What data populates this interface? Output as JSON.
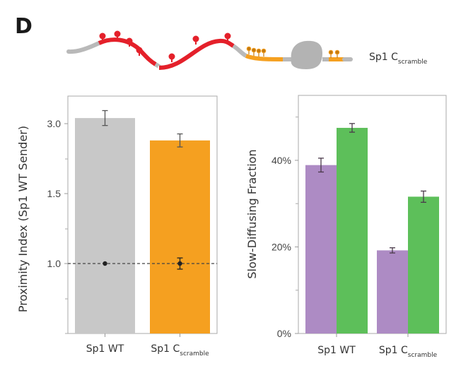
{
  "panel_label": "D",
  "schematic": {
    "label_main": "Sp1 C",
    "label_sub": "scramble",
    "colors": {
      "linker": "#b9b9b9",
      "red_domain": "#e4202a",
      "orange_domain": "#f5a020",
      "dbd": "#b3b3b3",
      "orange_dot": "#c47a10"
    }
  },
  "chart_data": [
    {
      "type": "bar",
      "title": "",
      "xlabel": "",
      "ylabel": "Proximity Index (Sp1 WT Sender)",
      "categories": [
        {
          "main": "Sp1 WT",
          "sub": ""
        },
        {
          "main": "Sp1 C",
          "sub": "scramble"
        }
      ],
      "yticks": [
        {
          "value": 1.0,
          "label": "1.0"
        },
        {
          "value": 1.5,
          "label": "1.5"
        },
        {
          "value": 3.0,
          "label": "3.0"
        }
      ],
      "yscale": "custom-evenly-spaced-ticks",
      "series": [
        {
          "name": "Proximity Index",
          "values": [
            3.12,
            2.64
          ],
          "errors": [
            0.16,
            0.14
          ],
          "colors": [
            "#c8c8c8",
            "#f5a020"
          ]
        },
        {
          "name": "Control (baseline)",
          "values": [
            1.0,
            1.0
          ],
          "errors": [
            0.0,
            0.04
          ],
          "marker": "dot",
          "color": "#222222"
        }
      ],
      "reference_line": {
        "value": 1.0,
        "style": "dashed"
      },
      "grid": false,
      "legend": "none"
    },
    {
      "type": "bar",
      "title": "",
      "xlabel": "",
      "ylabel": "Slow-Diffusing Fraction",
      "categories": [
        {
          "main": "Sp1 WT",
          "sub": ""
        },
        {
          "main": "Sp1 C",
          "sub": "scramble"
        }
      ],
      "ylim": [
        0,
        55
      ],
      "yticks": [
        {
          "value": 0,
          "label": "0%"
        },
        {
          "value": 20,
          "label": "20%"
        },
        {
          "value": 40,
          "label": "40%"
        }
      ],
      "yminor": [
        10,
        30,
        50
      ],
      "series": [
        {
          "name": "purple",
          "values": [
            38.9,
            19.2
          ],
          "errors": [
            1.6,
            0.6
          ],
          "color": "#ad8bc4"
        },
        {
          "name": "green",
          "values": [
            47.5,
            31.6
          ],
          "errors": [
            1.0,
            1.3
          ],
          "color": "#5dbf5a"
        }
      ],
      "grid": false,
      "legend": "none"
    }
  ]
}
